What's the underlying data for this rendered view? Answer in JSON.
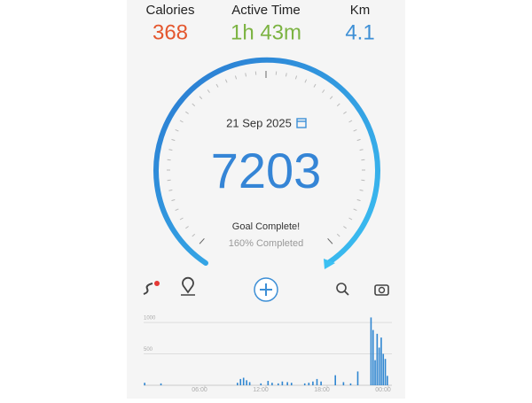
{
  "stats": [
    {
      "label": "Calories",
      "value": "368",
      "color": "#e4572e"
    },
    {
      "label": "Active Time",
      "value": "1h 43m",
      "color": "#7cb342"
    },
    {
      "label": "Km",
      "value": "4.1",
      "color": "#3d8fd6"
    }
  ],
  "gauge": {
    "date": "21 Sep 2025",
    "steps": "7203",
    "status": "Goal Complete!",
    "progress": "160% Completed"
  },
  "chart_data": {
    "type": "bar",
    "color": "#2f86d1",
    "x": [
      0.1,
      1.7,
      9.2,
      9.5,
      9.8,
      10.1,
      10.4,
      11.5,
      12.2,
      12.6,
      13.2,
      13.6,
      14.1,
      14.5,
      15.8,
      16.2,
      16.6,
      17.0,
      17.4,
      18.8,
      19.6,
      20.3,
      21.0,
      22.3,
      22.5,
      22.7,
      22.9,
      23.1,
      23.3,
      23.5,
      23.7,
      23.9
    ],
    "values": [
      40,
      30,
      40,
      100,
      120,
      80,
      50,
      30,
      70,
      40,
      30,
      60,
      50,
      40,
      30,
      40,
      60,
      100,
      60,
      160,
      50,
      30,
      220,
      1080,
      880,
      400,
      820,
      600,
      760,
      500,
      420,
      150
    ],
    "xlim": [
      0,
      24
    ],
    "xticks": [
      {
        "value": 6,
        "label": "06:00"
      },
      {
        "value": 12,
        "label": "12:00"
      },
      {
        "value": 18,
        "label": "18:00"
      },
      {
        "value": 24,
        "label": "00:00"
      }
    ],
    "ylim": [
      0,
      1100
    ],
    "yticks": [
      500,
      1000
    ],
    "grid": true
  }
}
